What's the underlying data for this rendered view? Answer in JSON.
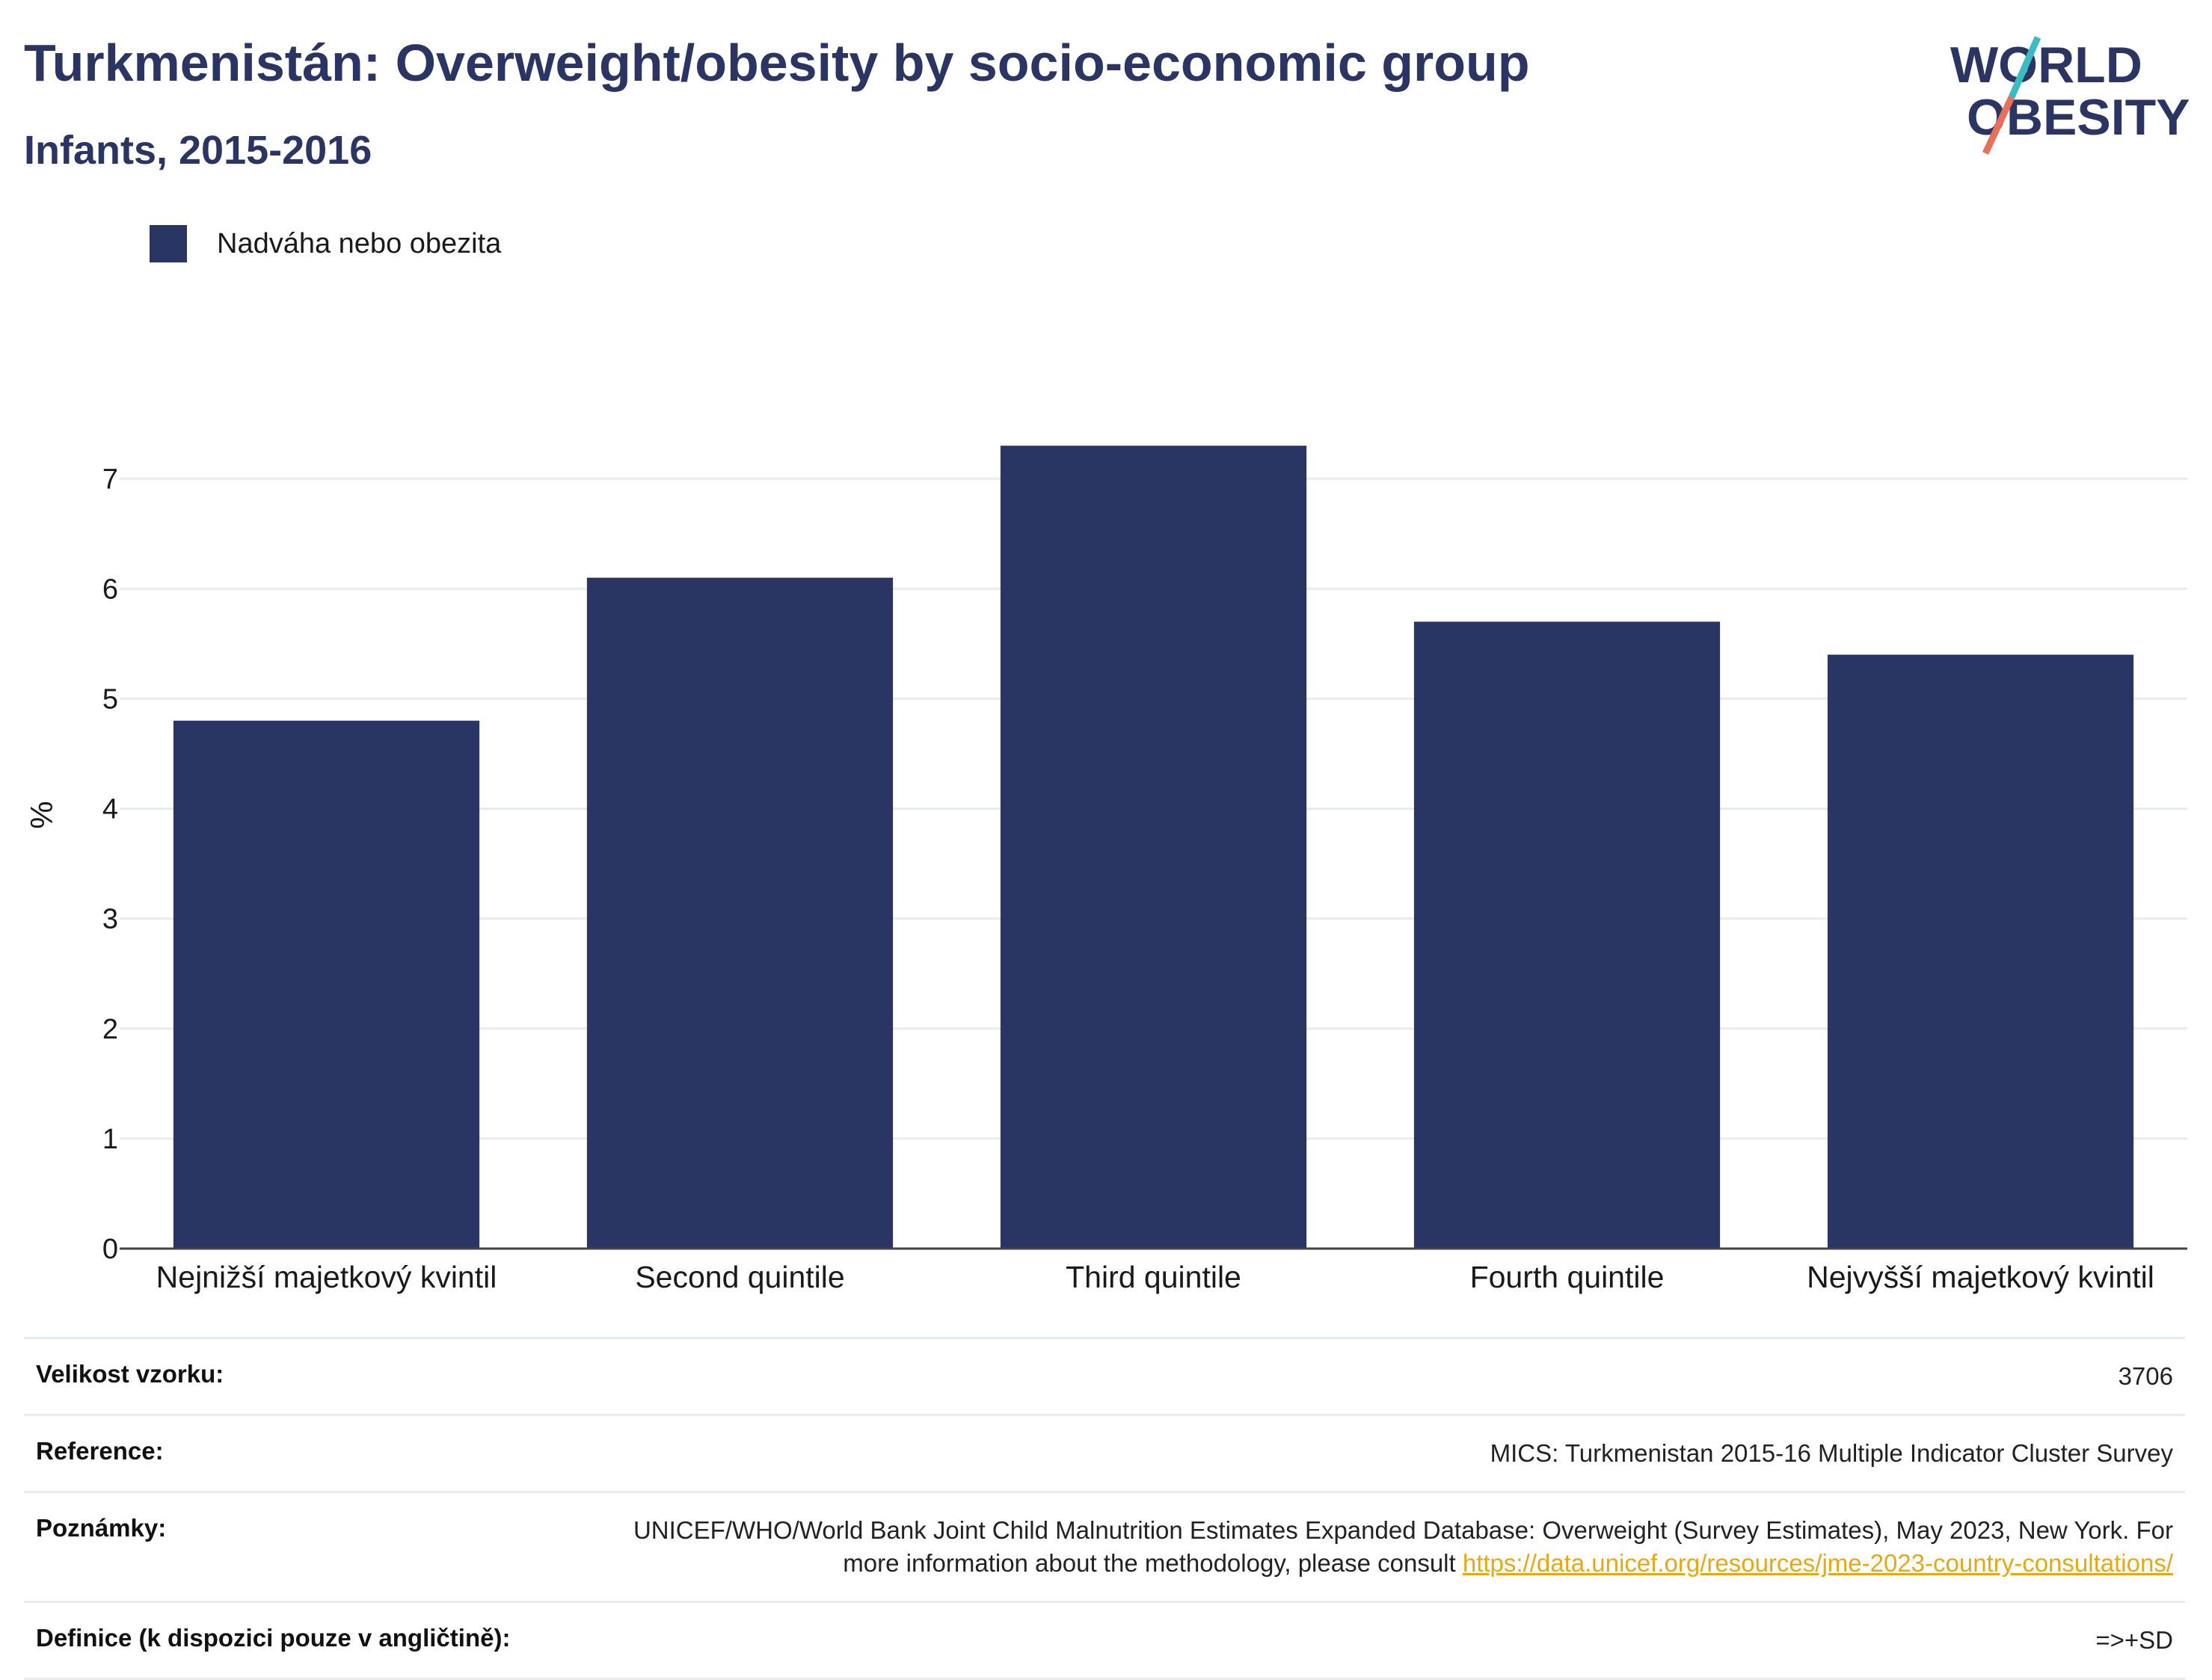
{
  "header": {
    "title": "Turkmenistán: Overweight/obesity by socio-economic group",
    "subtitle": "Infants, 2015-2016"
  },
  "logo": {
    "line1": "WORLD",
    "line2": "OBESITY",
    "colors": {
      "text": "#2b3563",
      "slash_top": "#3bbcc2",
      "slash_bottom": "#e8705a"
    }
  },
  "colors": {
    "bar": "#2b3563",
    "grid": "#e6ecef",
    "axis": "#444444",
    "link": "#e6a817"
  },
  "chart_data": {
    "type": "bar",
    "categories": [
      "Nejnižší majetkový kvintil",
      "Second quintile",
      "Third quintile",
      "Fourth quintile",
      "Nejvyšší majetkový kvintil"
    ],
    "series": [
      {
        "name": "Nadváha nebo obezita",
        "values": [
          4.8,
          6.1,
          7.3,
          5.7,
          5.4
        ]
      }
    ],
    "ylabel": "%",
    "xlabel": "",
    "ylim": [
      0,
      7.6
    ],
    "yticks": [
      0,
      1,
      2,
      3,
      4,
      5,
      6,
      7
    ],
    "grid": true,
    "legend": "top-left"
  },
  "info": {
    "sample_size": {
      "label": "Velikost vzorku:",
      "value": "3706"
    },
    "reference": {
      "label": "Reference:",
      "value": "MICS: Turkmenistan 2015-16 Multiple Indicator Cluster Survey"
    },
    "notes": {
      "label": "Poznámky:",
      "text": "UNICEF/WHO/World Bank Joint Child Malnutrition Estimates Expanded Database: Overweight (Survey Estimates), May 2023, New York. For more information about the methodology, please consult ",
      "link": "https://data.unicef.org/resources/jme-2023-country-consultations/"
    },
    "definition": {
      "label": "Definice (k dispozici pouze v angličtině):",
      "value": "=>+SD"
    }
  }
}
